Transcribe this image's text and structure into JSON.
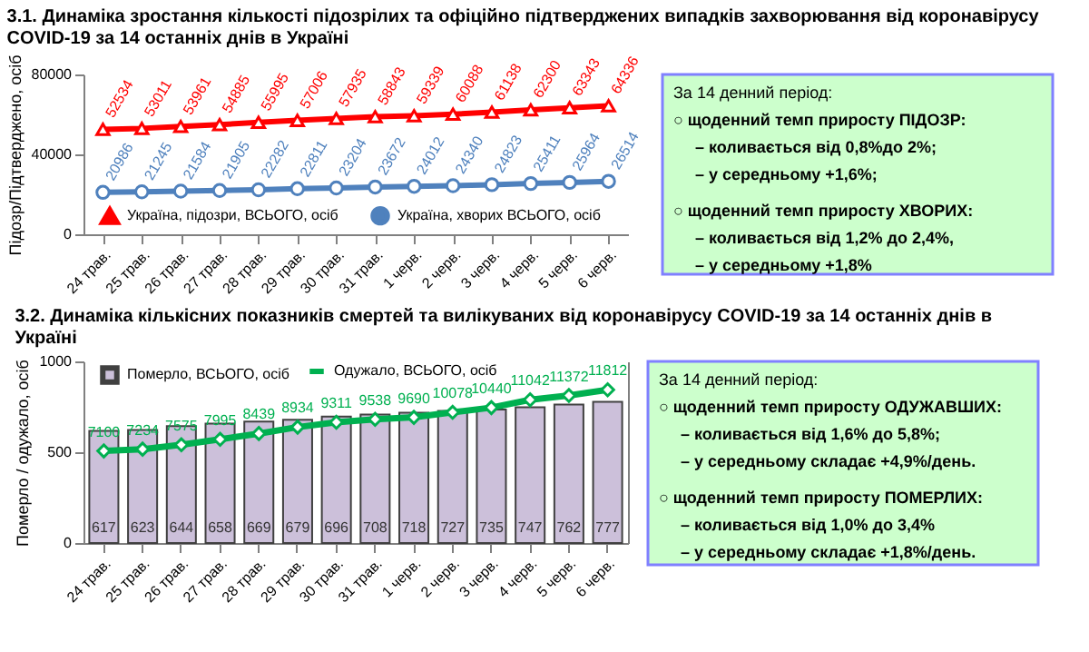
{
  "chart_data": [
    {
      "type": "line",
      "title": "3.1. Динаміка зростання кількості підозрілих та офіційно підтверджених випадків захворювання від коронавірусу COVID-19 за 14 останніх днів в Україні",
      "ylabel": "Підозр/Підтверджено, осіб",
      "categories": [
        "24 трав.",
        "25 трав.",
        "26 трав.",
        "27 трав.",
        "28 трав.",
        "29 трав.",
        "30 трав.",
        "31 трав.",
        "1 черв.",
        "2 черв.",
        "3 черв.",
        "4 черв.",
        "5 черв.",
        "6 черв."
      ],
      "series": [
        {
          "name": "Україна, підозри, ВСЬОГО, осіб",
          "color": "#ff0000",
          "marker": "triangle",
          "values": [
            52534,
            53011,
            53961,
            54885,
            55995,
            57006,
            57935,
            58843,
            59339,
            60088,
            61138,
            62300,
            63343,
            64336
          ]
        },
        {
          "name": "Україна, хворих ВСЬОГО, осіб",
          "color": "#4f81bd",
          "marker": "circle",
          "values": [
            20986,
            21245,
            21584,
            21905,
            22282,
            22811,
            23204,
            23672,
            24012,
            24340,
            24823,
            25411,
            25964,
            26514
          ]
        }
      ],
      "ylim": [
        0,
        80000
      ],
      "yticks": [
        0,
        40000,
        80000
      ],
      "data_labels": true,
      "legend": "bottom"
    },
    {
      "type": "other",
      "color": "#ccffcc",
      "annotations": [
        "За 14 денний період:",
        "○ щоденний темп приросту ПІДОЗР:",
        "– коливається від 0,8%до 2%;",
        "– у середньому +1,6%;",
        "○ щоденний темп приросту ХВОРИХ:",
        "– коливається від 1,2% до 2,4%,",
        "– у середньому +1,8%"
      ]
    },
    {
      "type": "bar",
      "title": "3.2. Динаміка кількісних показників смертей та вилікуваних від коронавірусу COVID-19 за 14 останніх днів в Україні",
      "ylabel": "Померло / одужало, осіб",
      "categories": [
        "24 трав.",
        "25 трав.",
        "26 трав.",
        "27 трав.",
        "28 трав.",
        "29 трав.",
        "30 трав.",
        "31 трав.",
        "1 черв.",
        "2 черв.",
        "3 черв.",
        "4 черв.",
        "5 черв.",
        "6 черв."
      ],
      "series": [
        {
          "name": "Померло, ВСЬОГО, осіб",
          "type": "bar",
          "color": "#ccc0da",
          "values": [
            617,
            623,
            644,
            658,
            669,
            679,
            696,
            708,
            718,
            727,
            735,
            747,
            762,
            777
          ]
        },
        {
          "name": "Одужало, ВСЬОГО, осіб",
          "type": "line",
          "axis": "y2",
          "marker": "diamond",
          "color": "#00b050",
          "values": [
            7100,
            7234,
            7575,
            7995,
            8439,
            8934,
            9311,
            9538,
            9690,
            10078,
            10440,
            11042,
            11372,
            11812
          ]
        }
      ],
      "ylim": [
        0,
        1000
      ],
      "yticks": [
        0,
        500,
        1000
      ],
      "y2lim": [
        0,
        14000
      ],
      "data_labels": true,
      "legend": "top"
    },
    {
      "type": "other",
      "color": "#ccffcc",
      "annotations": [
        "За 14 денний період:",
        "○ щоденний темп приросту ОДУЖАВШИХ:",
        "– коливається від 1,6% до 5,8%;",
        "– у середньому складає +4,9%/день.",
        "○ щоденний темп приросту ПОМЕРЛИХ:",
        "– коливається від 1,0% до 3,4%",
        "– у середньому складає +1,8%/день."
      ]
    }
  ]
}
